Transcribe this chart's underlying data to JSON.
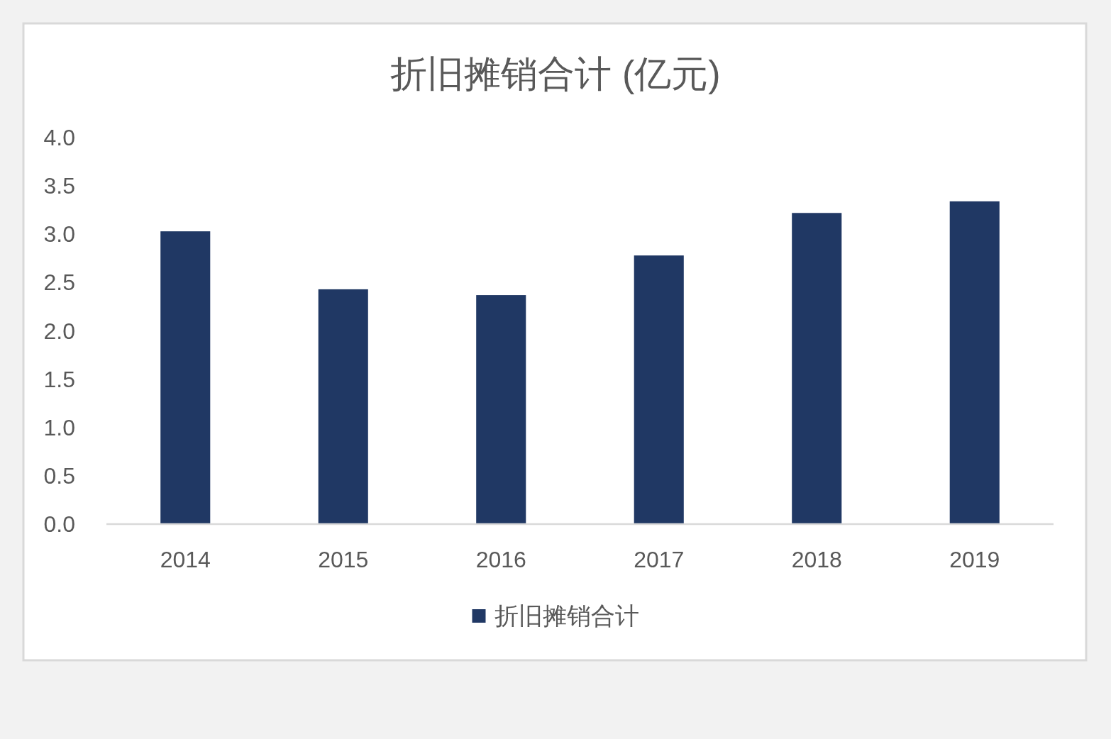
{
  "chart_data": {
    "type": "bar",
    "title": "折旧摊销合计 (亿元)",
    "categories": [
      "2014",
      "2015",
      "2016",
      "2017",
      "2018",
      "2019"
    ],
    "series": [
      {
        "name": "折旧摊销合计",
        "color": "#203864",
        "values": [
          3.03,
          2.43,
          2.37,
          2.78,
          3.22,
          3.34
        ]
      }
    ],
    "ylim": [
      0,
      4
    ],
    "yticks": [
      {
        "value": 0,
        "label": "0.0"
      },
      {
        "value": 0.5,
        "label": "0.5"
      },
      {
        "value": 1,
        "label": "1.0"
      },
      {
        "value": 1.5,
        "label": "1.5"
      },
      {
        "value": 2,
        "label": "2.0"
      },
      {
        "value": 2.5,
        "label": "2.5"
      },
      {
        "value": 3,
        "label": "3.0"
      },
      {
        "value": 3.5,
        "label": "3.5"
      },
      {
        "value": 4,
        "label": "4.0"
      }
    ],
    "legend": "bottom"
  }
}
